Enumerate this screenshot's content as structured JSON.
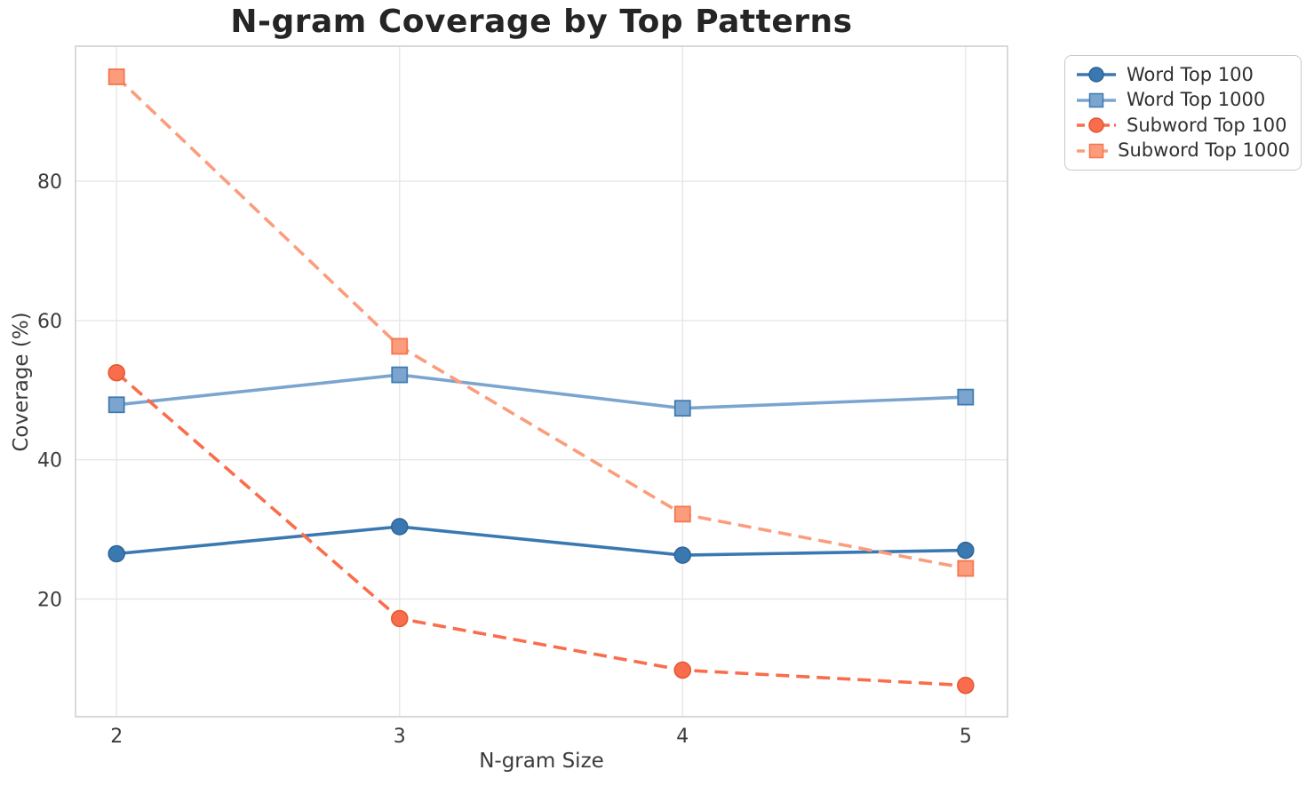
{
  "chart_data": {
    "type": "line",
    "title": "N-gram Coverage by Top Patterns",
    "xlabel": "N-gram Size",
    "ylabel": "Coverage (%)",
    "x": [
      2,
      3,
      4,
      5
    ],
    "xtick_labels": [
      "2",
      "3",
      "4",
      "5"
    ],
    "yticks": [
      20,
      40,
      60,
      80
    ],
    "ytick_labels": [
      "20",
      "40",
      "60",
      "80"
    ],
    "xlim": [
      1.855,
      5.148
    ],
    "ylim": [
      3.1,
      99.4
    ],
    "grid": true,
    "legend_position": "outside-right-top",
    "series": [
      {
        "name": "Word Top 100",
        "marker": "circle",
        "line_style": "solid",
        "color": "#3a78b2",
        "marker_edge": "#2e6394",
        "values": [
          26.5,
          30.4,
          26.3,
          27.0
        ]
      },
      {
        "name": "Word Top 1000",
        "marker": "square",
        "line_style": "solid",
        "color": "#7ba5cf",
        "marker_edge": "#3f7bb2",
        "values": [
          47.9,
          52.2,
          47.4,
          49.0
        ]
      },
      {
        "name": "Subword Top 100",
        "marker": "circle",
        "line_style": "dashed",
        "color": "#f96d4c",
        "marker_edge": "#e55530",
        "values": [
          52.5,
          17.2,
          9.8,
          7.6
        ]
      },
      {
        "name": "Subword Top 1000",
        "marker": "square",
        "line_style": "dashed",
        "color": "#fb9d7c",
        "marker_edge": "#f4764e",
        "values": [
          95.0,
          56.3,
          32.2,
          24.4
        ]
      }
    ],
    "colors": {
      "background": "#ffffff",
      "grid": "#e7e7e7",
      "spine": "#d5d5d5",
      "tick_text": "#3b3b3b",
      "title_text": "#252525"
    }
  }
}
